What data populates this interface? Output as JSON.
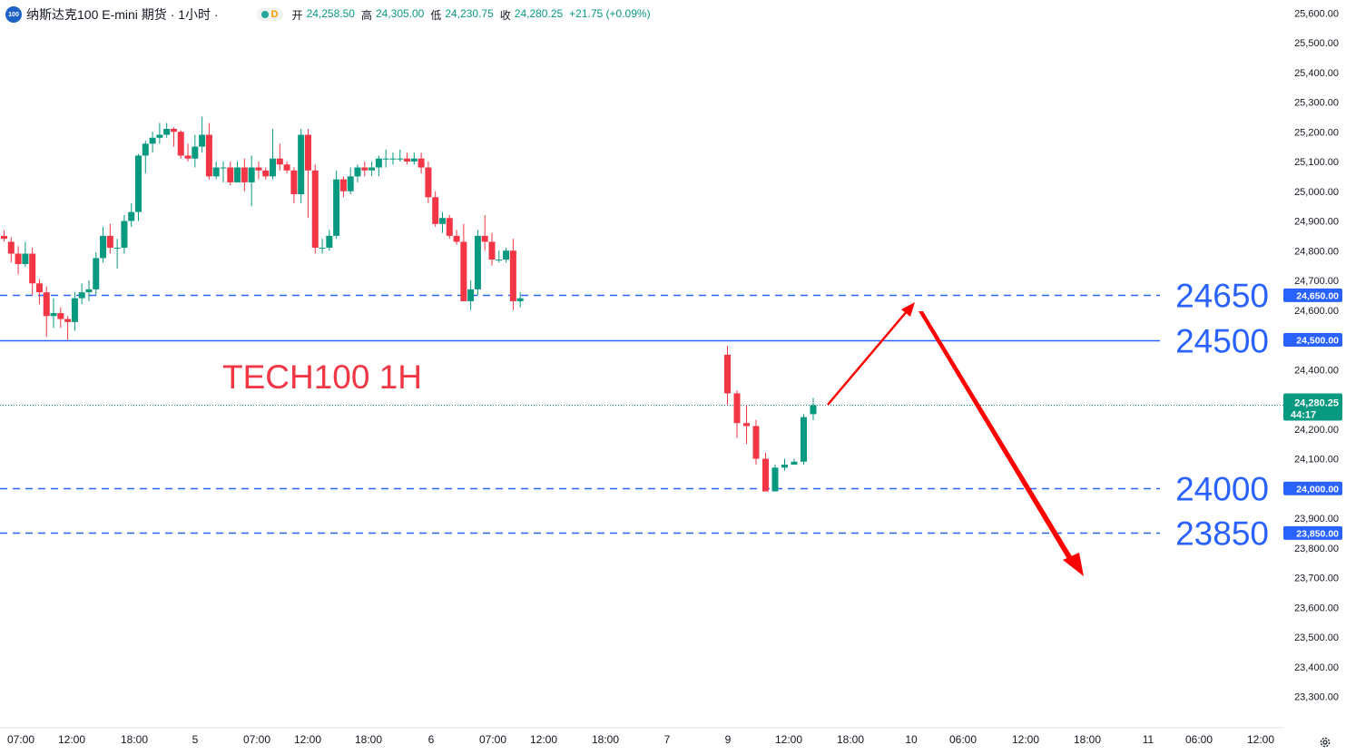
{
  "header": {
    "logo_text": "100",
    "symbol": "纳斯达克100 E-mini 期货 · 1小时 ·",
    "status_letter": "D",
    "ohlc": [
      {
        "k": "开",
        "v": "24,258.50"
      },
      {
        "k": "高",
        "v": "24,305.00"
      },
      {
        "k": "低",
        "v": "24,230.75"
      },
      {
        "k": "收",
        "v": "24,280.25"
      }
    ],
    "change": "+21.75 (+0.09%)"
  },
  "colors": {
    "up": "#089981",
    "down": "#f23645",
    "level_line": "#2962ff",
    "level_text": "#2962ff",
    "arrow": "#ff0000",
    "label_title": "#f23645",
    "price_label": "#089981"
  },
  "chart_data": {
    "type": "candlestick",
    "title": "TECH100 1H",
    "y_ticks": [
      25600,
      25500,
      25400,
      25300,
      25200,
      25100,
      25000,
      24900,
      24800,
      24700,
      24600,
      24500,
      24400,
      24300,
      24200,
      24100,
      24000,
      23900,
      23800,
      23700,
      23600,
      23500,
      23400,
      23300
    ],
    "ylim": [
      23235,
      25640
    ],
    "x_ticks": [
      "07:00",
      "12:00",
      "18:00",
      "5",
      "07:00",
      "12:00",
      "18:00",
      "6",
      "07:00",
      "12:00",
      "18:00",
      "7",
      "9",
      "12:00",
      "18:00",
      "10",
      "06:00",
      "12:00",
      "18:00",
      "11",
      "06:00",
      "12:00"
    ],
    "candles": [
      [
        24850,
        24840,
        24870,
        24830
      ],
      [
        24830,
        24790,
        24845,
        24760
      ],
      [
        24790,
        24755,
        24815,
        24720
      ],
      [
        24755,
        24790,
        24830,
        24745
      ],
      [
        24790,
        24690,
        24810,
        24650
      ],
      [
        24690,
        24660,
        24705,
        24620
      ],
      [
        24660,
        24580,
        24680,
        24510
      ],
      [
        24580,
        24590,
        24640,
        24540
      ],
      [
        24590,
        24570,
        24610,
        24540
      ],
      [
        24570,
        24560,
        24580,
        24500
      ],
      [
        24560,
        24640,
        24660,
        24530
      ],
      [
        24640,
        24660,
        24690,
        24620
      ],
      [
        24660,
        24670,
        24700,
        24630
      ],
      [
        24670,
        24775,
        24795,
        24650
      ],
      [
        24775,
        24850,
        24880,
        24760
      ],
      [
        24850,
        24810,
        24890,
        24790
      ],
      [
        24810,
        24810,
        24840,
        24740
      ],
      [
        24810,
        24900,
        24920,
        24790
      ],
      [
        24900,
        24930,
        24960,
        24880
      ],
      [
        24930,
        25120,
        25125,
        24900
      ],
      [
        25120,
        25160,
        25170,
        25060
      ],
      [
        25160,
        25180,
        25200,
        25130
      ],
      [
        25180,
        25190,
        25230,
        25160
      ],
      [
        25190,
        25210,
        25230,
        25180
      ],
      [
        25210,
        25200,
        25215,
        25150
      ],
      [
        25200,
        25120,
        25205,
        25110
      ],
      [
        25120,
        25110,
        25160,
        25100
      ],
      [
        25110,
        25150,
        25190,
        25080
      ],
      [
        25150,
        25190,
        25250,
        25130
      ],
      [
        25190,
        25050,
        25230,
        25040
      ],
      [
        25050,
        25080,
        25100,
        25040
      ],
      [
        25080,
        25080,
        25100,
        25030
      ],
      [
        25080,
        25030,
        25100,
        25020
      ],
      [
        25030,
        25080,
        25100,
        25030
      ],
      [
        25080,
        25030,
        25110,
        25000
      ],
      [
        25030,
        25080,
        25120,
        24950
      ],
      [
        25080,
        25070,
        25100,
        25040
      ],
      [
        25070,
        25050,
        25080,
        25040
      ],
      [
        25050,
        25110,
        25210,
        25040
      ],
      [
        25110,
        25090,
        25160,
        25070
      ],
      [
        25090,
        25070,
        25100,
        25060
      ],
      [
        25070,
        24990,
        25080,
        24960
      ],
      [
        24990,
        25190,
        25210,
        24960
      ],
      [
        25190,
        25070,
        25210,
        24910
      ],
      [
        25070,
        24810,
        25090,
        24790
      ],
      [
        24810,
        24810,
        24840,
        24790
      ],
      [
        24810,
        24850,
        24870,
        24800
      ],
      [
        24850,
        25040,
        25070,
        24840
      ],
      [
        25040,
        25000,
        25050,
        24980
      ],
      [
        25000,
        25050,
        25080,
        24990
      ],
      [
        25050,
        25080,
        25090,
        25030
      ],
      [
        25080,
        25070,
        25100,
        25050
      ],
      [
        25070,
        25080,
        25100,
        25050
      ],
      [
        25080,
        25110,
        25120,
        25050
      ],
      [
        25110,
        25110,
        25140,
        25080
      ],
      [
        25110,
        25110,
        25130,
        25090
      ],
      [
        25110,
        25110,
        25140,
        25100
      ],
      [
        25110,
        25100,
        25130,
        25090
      ],
      [
        25100,
        25110,
        25130,
        25090
      ],
      [
        25110,
        25080,
        25130,
        25060
      ],
      [
        25080,
        24980,
        25100,
        24960
      ],
      [
        24980,
        24890,
        25000,
        24880
      ],
      [
        24890,
        24910,
        24930,
        24860
      ],
      [
        24910,
        24850,
        24920,
        24840
      ],
      [
        24850,
        24830,
        24870,
        24820
      ],
      [
        24830,
        24630,
        24890,
        24630
      ],
      [
        24630,
        24670,
        24700,
        24600
      ],
      [
        24670,
        24850,
        24870,
        24650
      ],
      [
        24850,
        24830,
        24920,
        24800
      ],
      [
        24830,
        24770,
        24860,
        24750
      ],
      [
        24770,
        24770,
        24800,
        24760
      ],
      [
        24770,
        24800,
        24810,
        24760
      ],
      [
        24800,
        24630,
        24840,
        24600
      ],
      [
        24630,
        24640,
        24660,
        24610
      ],
      [
        24450,
        24320,
        24480,
        24280
      ],
      [
        24320,
        24220,
        24330,
        24170
      ],
      [
        24220,
        24210,
        24280,
        24150
      ],
      [
        24210,
        24100,
        24230,
        24080
      ],
      [
        24100,
        23990,
        24120,
        23990
      ],
      [
        23990,
        24070,
        24080,
        23990
      ],
      [
        24070,
        24080,
        24100,
        24060
      ],
      [
        24080,
        24090,
        24100,
        24080
      ],
      [
        24090,
        24240,
        24250,
        24080
      ],
      [
        24250,
        24280,
        24305,
        24230
      ]
    ],
    "levels": [
      {
        "price": 24650,
        "style": "dashed",
        "label": "24650",
        "axis_label": "24,650.00"
      },
      {
        "price": 24500,
        "style": "solid",
        "label": "24500",
        "axis_label": "24,500.00"
      },
      {
        "price": 24000,
        "style": "dashed",
        "label": "24000",
        "axis_label": "24,000.00"
      },
      {
        "price": 23850,
        "style": "dashed",
        "label": "23850",
        "axis_label": "23,850.00"
      }
    ],
    "current_price": {
      "price": 24280.25,
      "label": "24,280.25",
      "countdown": "44:17"
    }
  }
}
